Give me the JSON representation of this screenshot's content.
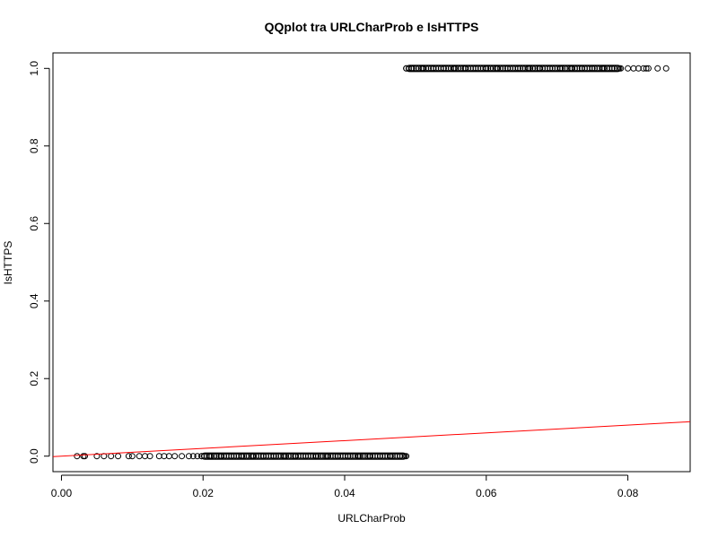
{
  "chart_data": {
    "type": "scatter",
    "title": "QQplot tra URLCharProb e IsHTTPS",
    "xlabel": "URLCharProb",
    "ylabel": "IsHTTPS",
    "xlim": [
      -0.0012,
      0.0888
    ],
    "ylim": [
      -0.04,
      1.04
    ],
    "xticks": [
      0.0,
      0.02,
      0.04,
      0.06,
      0.08
    ],
    "xtick_labels": [
      "0.00",
      "0.02",
      "0.04",
      "0.06",
      "0.08"
    ],
    "yticks": [
      0.0,
      0.2,
      0.4,
      0.6,
      0.8,
      1.0
    ],
    "ytick_labels": [
      "0.0",
      "0.2",
      "0.4",
      "0.6",
      "0.8",
      "1.0"
    ],
    "grid": false,
    "series": [
      {
        "marker": "open-circle",
        "color": "#000000",
        "points": [
          {
            "x": 0.0022,
            "y": 0
          },
          {
            "x": 0.0031,
            "y": 0
          },
          {
            "x": 0.0033,
            "y": 0
          },
          {
            "x": 0.005,
            "y": 0
          },
          {
            "x": 0.006,
            "y": 0
          },
          {
            "x": 0.007,
            "y": 0
          },
          {
            "x": 0.008,
            "y": 0
          },
          {
            "x": 0.0095,
            "y": 0
          },
          {
            "x": 0.01,
            "y": 0
          },
          {
            "x": 0.011,
            "y": 0
          },
          {
            "x": 0.0118,
            "y": 0
          },
          {
            "x": 0.0125,
            "y": 0
          },
          {
            "x": 0.0138,
            "y": 0
          },
          {
            "x": 0.0145,
            "y": 0
          },
          {
            "x": 0.0152,
            "y": 0
          },
          {
            "x": 0.016,
            "y": 0
          },
          {
            "x": 0.017,
            "y": 0
          },
          {
            "x": 0.018,
            "y": 0
          },
          {
            "x": 0.0186,
            "y": 0
          },
          {
            "x": 0.0192,
            "y": 0
          },
          {
            "x": 0.0198,
            "y": 0
          },
          {
            "x": 0.021,
            "y": 0
          },
          {
            "x": 0.0225,
            "y": 0
          },
          {
            "x": 0.024,
            "y": 0
          },
          {
            "x": 0.0255,
            "y": 0
          },
          {
            "x": 0.027,
            "y": 0
          },
          {
            "x": 0.0285,
            "y": 0
          },
          {
            "x": 0.03,
            "y": 0
          },
          {
            "x": 0.0315,
            "y": 0
          },
          {
            "x": 0.033,
            "y": 0
          },
          {
            "x": 0.0345,
            "y": 0
          },
          {
            "x": 0.036,
            "y": 0
          },
          {
            "x": 0.0375,
            "y": 0
          },
          {
            "x": 0.039,
            "y": 0
          },
          {
            "x": 0.0405,
            "y": 0
          },
          {
            "x": 0.042,
            "y": 0
          },
          {
            "x": 0.0435,
            "y": 0
          },
          {
            "x": 0.045,
            "y": 0
          },
          {
            "x": 0.0465,
            "y": 0
          },
          {
            "x": 0.0478,
            "y": 0
          },
          {
            "x": 0.0487,
            "y": 0
          },
          {
            "x": 0.0487,
            "y": 1
          },
          {
            "x": 0.0495,
            "y": 1
          },
          {
            "x": 0.051,
            "y": 1
          },
          {
            "x": 0.0525,
            "y": 1
          },
          {
            "x": 0.054,
            "y": 1
          },
          {
            "x": 0.0555,
            "y": 1
          },
          {
            "x": 0.057,
            "y": 1
          },
          {
            "x": 0.0585,
            "y": 1
          },
          {
            "x": 0.06,
            "y": 1
          },
          {
            "x": 0.0615,
            "y": 1
          },
          {
            "x": 0.063,
            "y": 1
          },
          {
            "x": 0.0645,
            "y": 1
          },
          {
            "x": 0.066,
            "y": 1
          },
          {
            "x": 0.0675,
            "y": 1
          },
          {
            "x": 0.069,
            "y": 1
          },
          {
            "x": 0.0705,
            "y": 1
          },
          {
            "x": 0.072,
            "y": 1
          },
          {
            "x": 0.0735,
            "y": 1
          },
          {
            "x": 0.075,
            "y": 1
          },
          {
            "x": 0.0765,
            "y": 1
          },
          {
            "x": 0.0778,
            "y": 1
          },
          {
            "x": 0.079,
            "y": 1
          },
          {
            "x": 0.08,
            "y": 1
          },
          {
            "x": 0.0808,
            "y": 1
          },
          {
            "x": 0.0815,
            "y": 1
          },
          {
            "x": 0.0822,
            "y": 1
          },
          {
            "x": 0.0826,
            "y": 1
          },
          {
            "x": 0.0829,
            "y": 1
          },
          {
            "x": 0.0842,
            "y": 1
          },
          {
            "x": 0.0854,
            "y": 1
          }
        ]
      }
    ],
    "reference_line": {
      "color": "#ff0000",
      "slope": 1,
      "intercept": 0
    }
  }
}
